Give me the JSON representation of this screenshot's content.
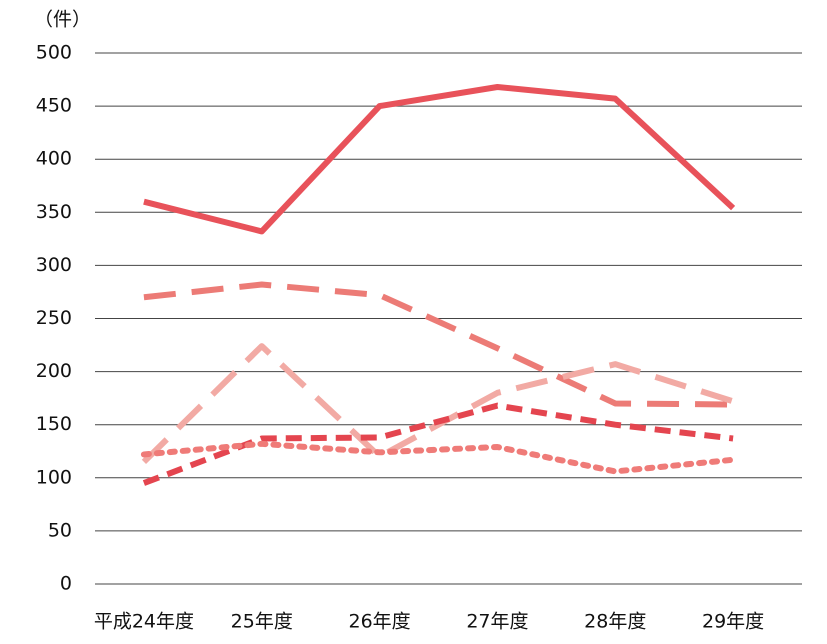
{
  "chart_data": {
    "type": "line",
    "y_label": "（件）",
    "categories": [
      "平成24年度",
      "25年度",
      "26年度",
      "27年度",
      "28年度",
      "29年度"
    ],
    "series": [
      {
        "color": "#e8525a",
        "linestyle": "solid",
        "values": [
          360,
          332,
          450,
          468,
          457,
          354
        ]
      },
      {
        "color": "#ec7b76",
        "linestyle": "long-dash",
        "values": [
          270,
          282,
          272,
          222,
          170,
          169
        ]
      },
      {
        "color": "#f2aaa4",
        "linestyle": "long-dash",
        "values": [
          115,
          224,
          120,
          180,
          207,
          172
        ]
      },
      {
        "color": "#e4454f",
        "linestyle": "dash",
        "values": [
          95,
          137,
          138,
          168,
          150,
          137
        ]
      },
      {
        "color": "#ef7b78",
        "linestyle": "dot",
        "values": [
          122,
          132,
          124,
          129,
          106,
          117
        ]
      }
    ],
    "ylim": [
      0,
      500
    ],
    "yticks": [
      0,
      50,
      100,
      150,
      200,
      250,
      300,
      350,
      400,
      450,
      500
    ],
    "grid": true
  }
}
